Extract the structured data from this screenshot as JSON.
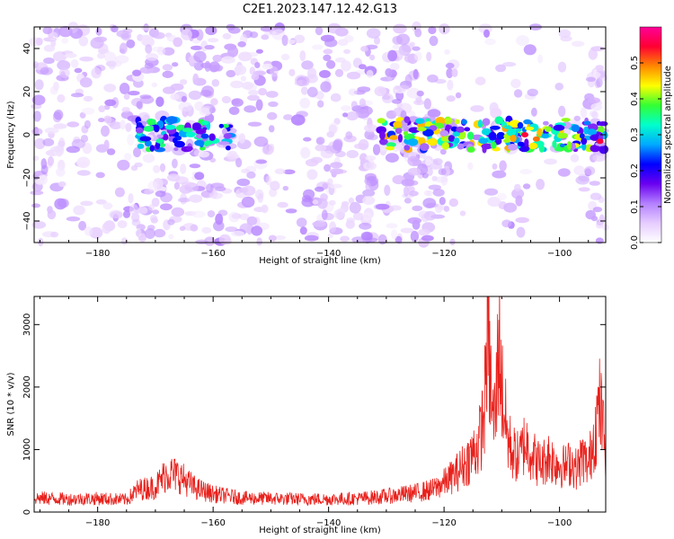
{
  "figure": {
    "title": "C2E1.2023.147.12.42.G13"
  },
  "chart_data": [
    {
      "type": "heatmap",
      "xlabel": "Height of straight line (km)",
      "ylabel": "Frequency (Hz)",
      "xlim": [
        -191,
        -92
      ],
      "ylim": [
        -50,
        50
      ],
      "xticks": [
        -180,
        -160,
        -140,
        -120,
        -100
      ],
      "yticks": [
        -40,
        -20,
        0,
        20,
        40
      ],
      "colorbar": {
        "label": "Normalized spectral amplitude",
        "range": [
          0.0,
          0.6
        ],
        "ticks": [
          0.0,
          0.1,
          0.2,
          0.3,
          0.4,
          0.5
        ],
        "colormap": [
          "#ffffff",
          "#e6ccff",
          "#b380ff",
          "#6a00f0",
          "#0000ff",
          "#00aaff",
          "#00ffcc",
          "#33ff33",
          "#ffff00",
          "#ff8800",
          "#ff0033",
          "#ff0099"
        ]
      },
      "features": [
        {
          "x_range": [
            -173,
            -157
          ],
          "frequency_hz": 0,
          "level": 0.3
        },
        {
          "x_range": [
            -131,
            -92
          ],
          "frequency_hz": 0,
          "level": 0.4
        }
      ],
      "peaks": [
        {
          "x": -106,
          "y": 0,
          "value": 0.55
        },
        {
          "x": -93,
          "y": -3,
          "value": 0.55
        },
        {
          "x": -104,
          "y": -2,
          "value": 0.5
        }
      ]
    },
    {
      "type": "line",
      "xlabel": "Height of straight line (km)",
      "ylabel": "SNR (10 * v/v)",
      "xlim": [
        -191,
        -92
      ],
      "ylim": [
        0,
        3450
      ],
      "xticks": [
        -180,
        -160,
        -140,
        -120,
        -100
      ],
      "yticks": [
        0,
        1000,
        2000,
        3000
      ],
      "line_color": "#e8211c",
      "series": [
        {
          "x": [
            -191,
            -185,
            -180,
            -175,
            -173,
            -170,
            -168,
            -166,
            -163,
            -160,
            -157,
            -155,
            -150,
            -145,
            -140,
            -135,
            -130,
            -125,
            -122,
            -120,
            -118,
            -116,
            -115,
            -114,
            -113,
            -112.5,
            -112,
            -111.5,
            -111,
            -110.5,
            -110,
            -109,
            -108,
            -107,
            -106,
            -105,
            -104,
            -103,
            -102,
            -101,
            -100,
            -99,
            -98,
            -97,
            -96,
            -95,
            -94,
            -93,
            -92
          ],
          "y": [
            250,
            230,
            240,
            220,
            400,
            450,
            700,
            650,
            420,
            320,
            280,
            250,
            240,
            230,
            230,
            240,
            280,
            340,
            400,
            520,
            680,
            900,
            1050,
            1200,
            1800,
            3420,
            2400,
            1600,
            1900,
            3300,
            2200,
            1300,
            1050,
            950,
            1250,
            1100,
            900,
            850,
            1000,
            900,
            850,
            800,
            900,
            750,
            1000,
            800,
            1400,
            1900,
            1100
          ]
        }
      ]
    }
  ]
}
